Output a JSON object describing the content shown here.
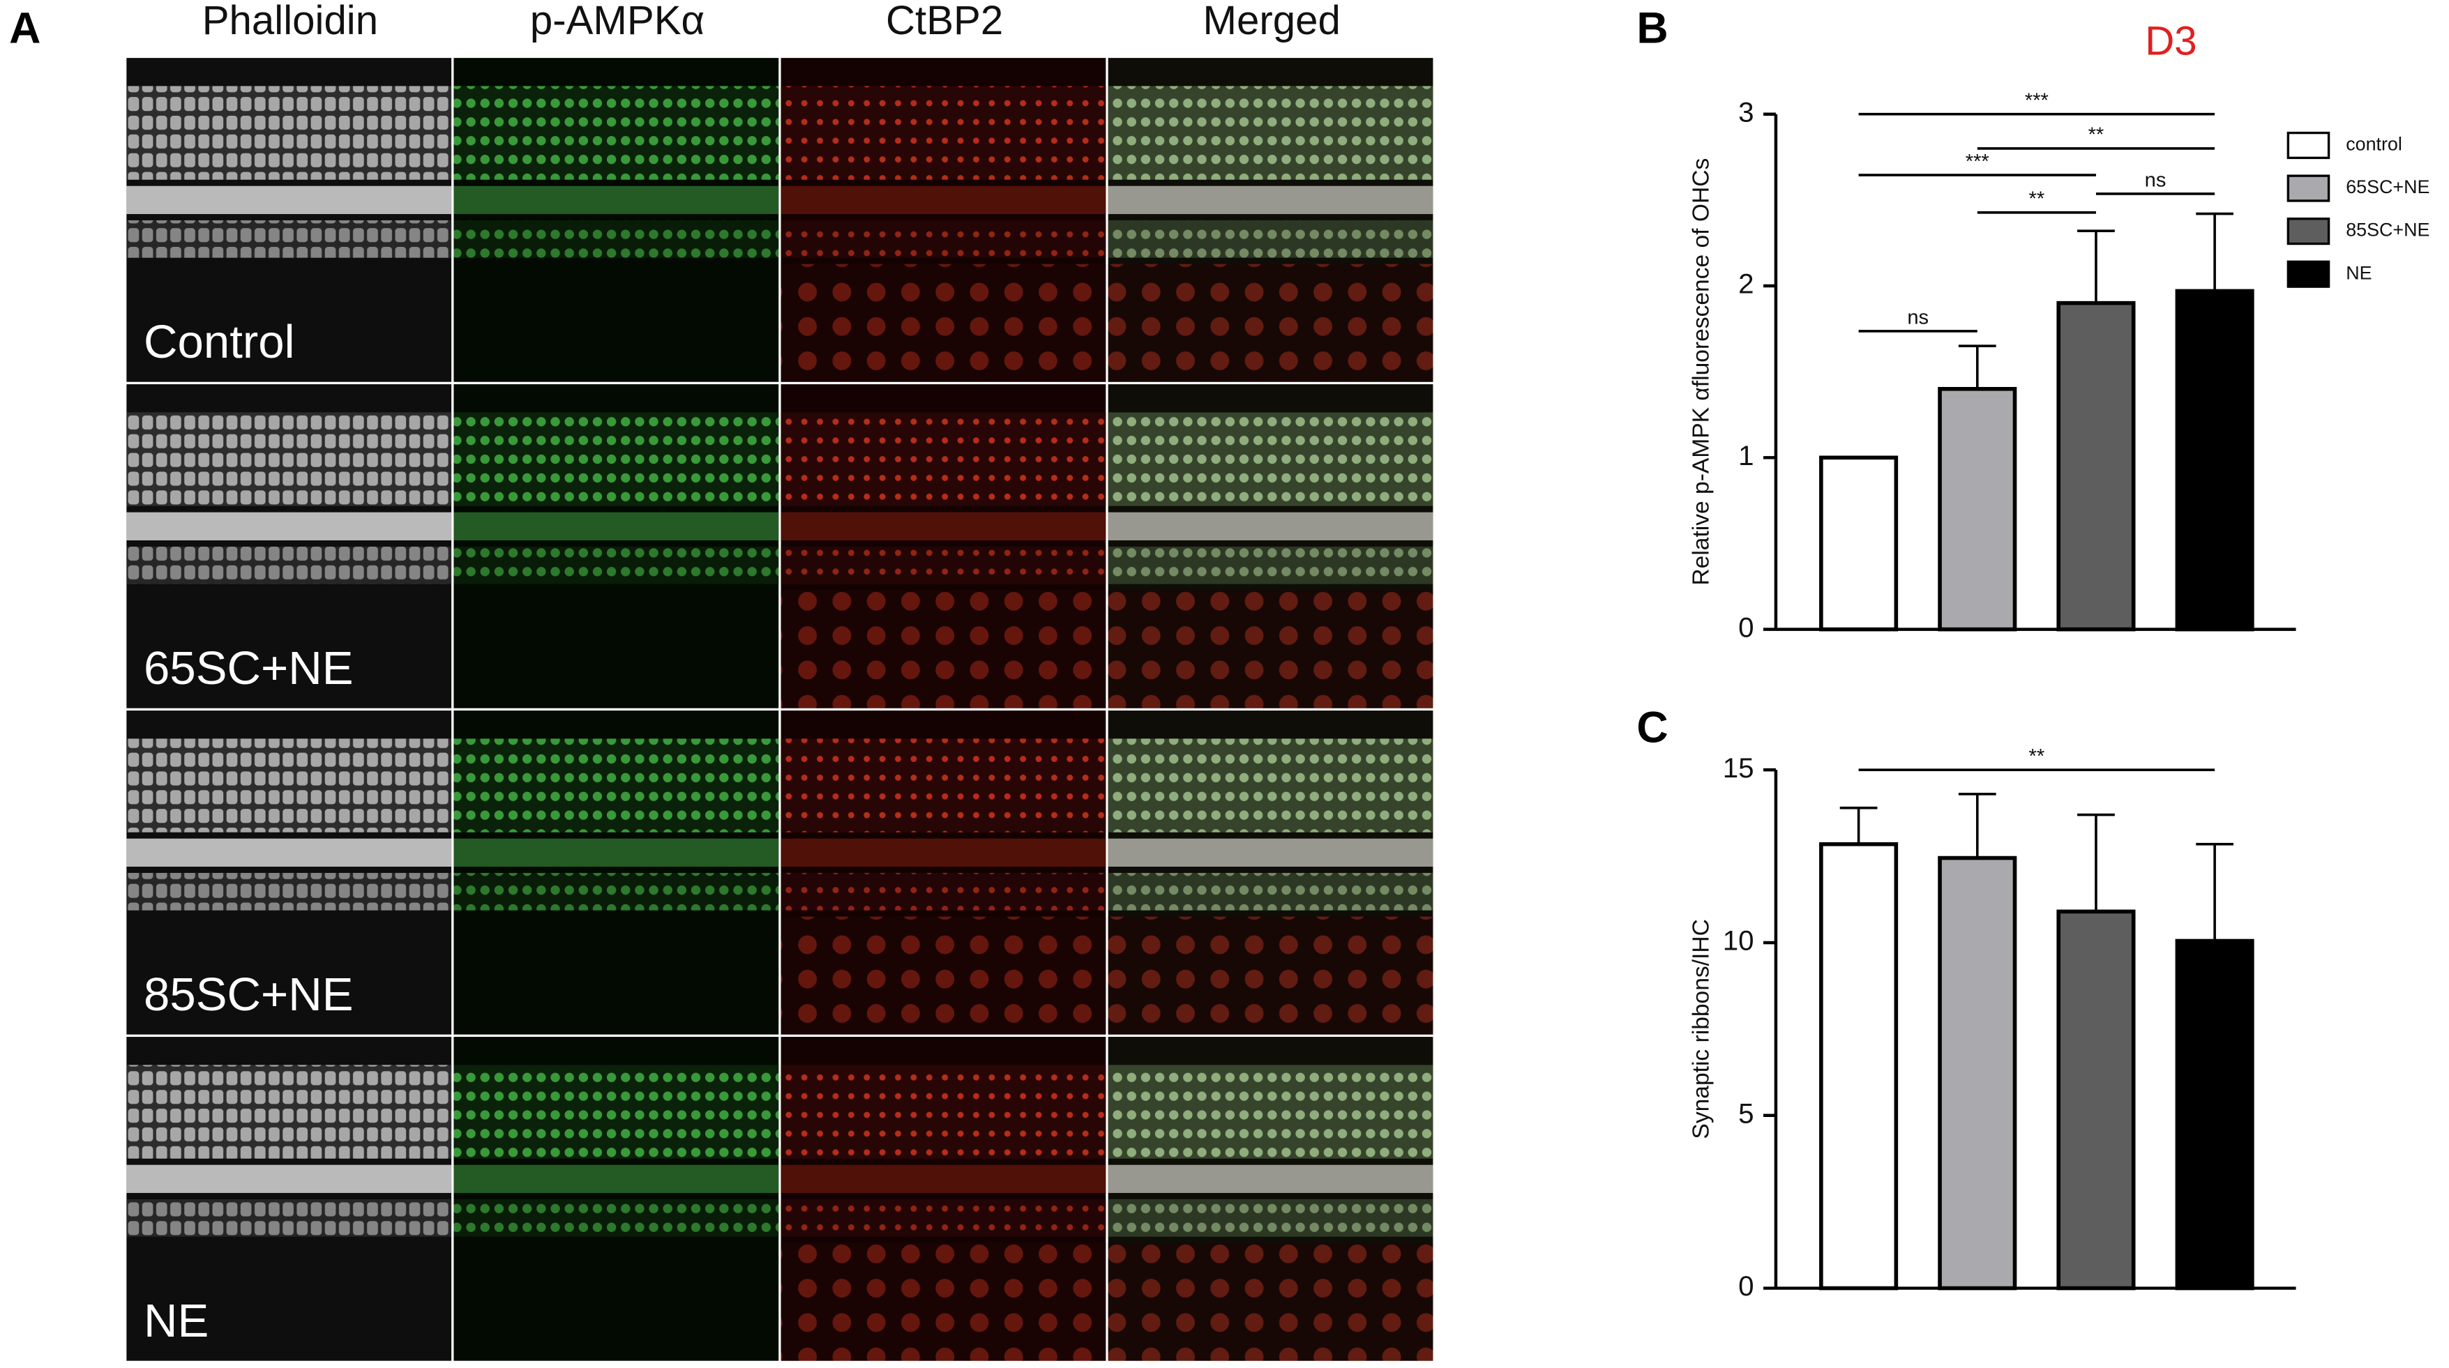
{
  "panel_a": {
    "label": "A",
    "columns": [
      "Phalloidin",
      "p-AMPKα",
      "CtBP2",
      "Merged"
    ],
    "rows": [
      "Control",
      "65SC+NE",
      "85SC+NE",
      "NE"
    ]
  },
  "chart_data": [
    {
      "type": "bar",
      "label": "B",
      "title": "D3",
      "ylabel": "Relative p-AMPK αfluorescence of OHCs",
      "categories": [
        "control",
        "65SC+NE",
        "85SC+NE",
        "NE"
      ],
      "values": [
        1.0,
        1.4,
        1.9,
        1.97
      ],
      "errors": [
        0,
        0.25,
        0.42,
        0.45
      ],
      "colors": [
        "#ffffff",
        "#a9a9ae",
        "#5e5e5e",
        "#000000"
      ],
      "ylim": [
        0,
        3
      ],
      "yticks": [
        0,
        1,
        2,
        3
      ],
      "legend": "right",
      "annotations": [
        {
          "text": "***",
          "from": 0,
          "to": 3
        },
        {
          "text": "**",
          "from": 1,
          "to": 3
        },
        {
          "text": "***",
          "from": 0,
          "to": 2
        },
        {
          "text": "ns",
          "from": 2,
          "to": 3
        },
        {
          "text": "**",
          "from": 1,
          "to": 2
        },
        {
          "text": "ns",
          "from": 0,
          "to": 1
        }
      ]
    },
    {
      "type": "bar",
      "label": "C",
      "ylabel": "Synaptic ribbons/IHC",
      "values": [
        12.85,
        12.45,
        10.9,
        10.05
      ],
      "errors": [
        1.05,
        1.85,
        2.8,
        2.8
      ],
      "colors": [
        "#ffffff",
        "#a9a9ae",
        "#5e5e5e",
        "#000000"
      ],
      "ylim": [
        0,
        15
      ],
      "yticks": [
        0,
        5,
        10,
        15
      ],
      "annotations": [
        {
          "text": "**",
          "from": 0,
          "to": 3
        }
      ]
    }
  ]
}
